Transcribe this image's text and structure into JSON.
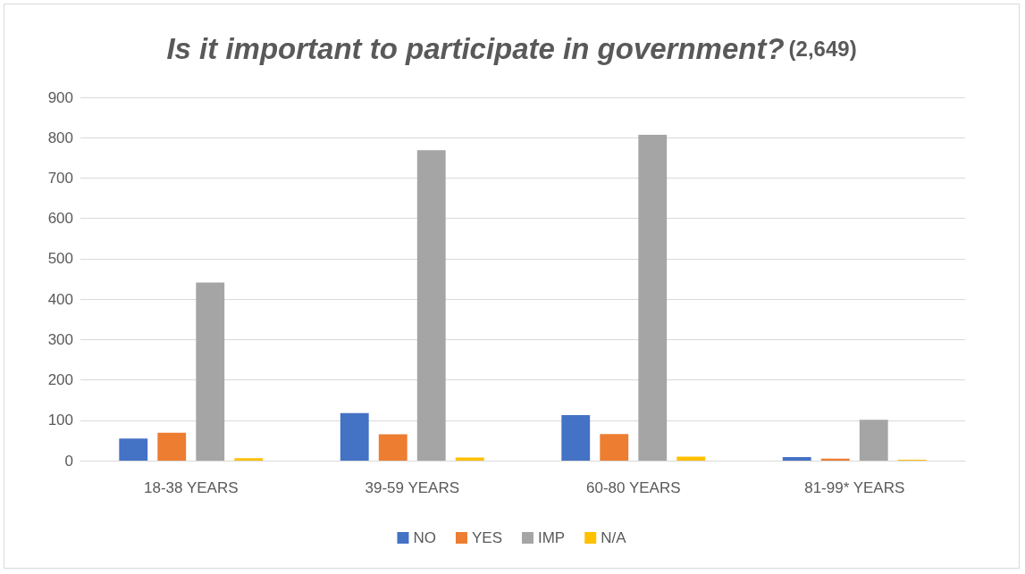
{
  "chart_data": {
    "type": "bar",
    "title": "Is it important to participate in government?",
    "subtitle": "(2,649)",
    "categories": [
      "18-38 YEARS",
      "39-59 YEARS",
      "60-80 YEARS",
      "81-99* YEARS"
    ],
    "series": [
      {
        "name": "NO",
        "color": "#4472c4",
        "values": [
          55,
          118,
          113,
          9
        ]
      },
      {
        "name": "YES",
        "color": "#ed7d31",
        "values": [
          69,
          65,
          66,
          5
        ]
      },
      {
        "name": "IMP",
        "color": "#a5a5a5",
        "values": [
          441,
          769,
          807,
          101
        ]
      },
      {
        "name": "N/A",
        "color": "#ffc000",
        "values": [
          6,
          8,
          10,
          2
        ]
      }
    ],
    "ylim": [
      0,
      900
    ],
    "yticks": [
      0,
      100,
      200,
      300,
      400,
      500,
      600,
      700,
      800,
      900
    ],
    "grid": "y",
    "legend": "bottom"
  }
}
